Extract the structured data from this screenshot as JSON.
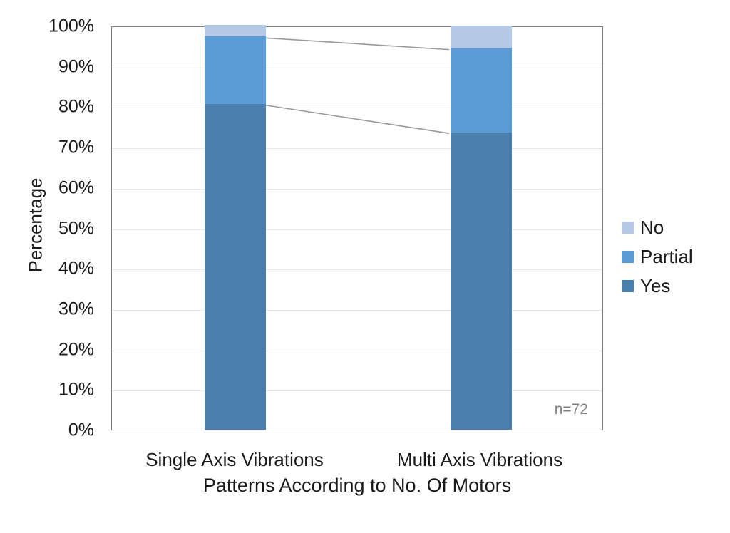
{
  "chart_data": {
    "type": "bar",
    "subtype": "stacked-100-percent-column",
    "title": "",
    "categories": [
      "Single Axis Vibrations",
      "Multi Axis Vibrations"
    ],
    "series": [
      {
        "name": "Yes",
        "values": [
          80.6,
          73.6
        ],
        "color": "#4b7eac"
      },
      {
        "name": "Partial",
        "values": [
          16.7,
          20.8
        ],
        "color": "#5b9bd5"
      },
      {
        "name": "No",
        "values": [
          2.8,
          5.6
        ],
        "color": "#b3c9e6"
      }
    ],
    "ylabel": "Percentage",
    "xlabel": "Patterns According to No. Of Motors",
    "yticks": [
      "0%",
      "10%",
      "20%",
      "30%",
      "40%",
      "50%",
      "60%",
      "70%",
      "80%",
      "90%",
      "100%"
    ],
    "ylim": [
      0,
      100
    ],
    "grid": true,
    "legend": {
      "position": "right",
      "items": [
        "No",
        "Partial",
        "Yes"
      ]
    },
    "annotation": "n=72",
    "series_connector_lines": true,
    "colors": {
      "axis_border": "#808080",
      "gridline": "#e8e8e8",
      "connector_line": "#999999",
      "annotation_text": "#7f7f7f",
      "text": "#1a1a1a",
      "background": "#ffffff"
    }
  }
}
